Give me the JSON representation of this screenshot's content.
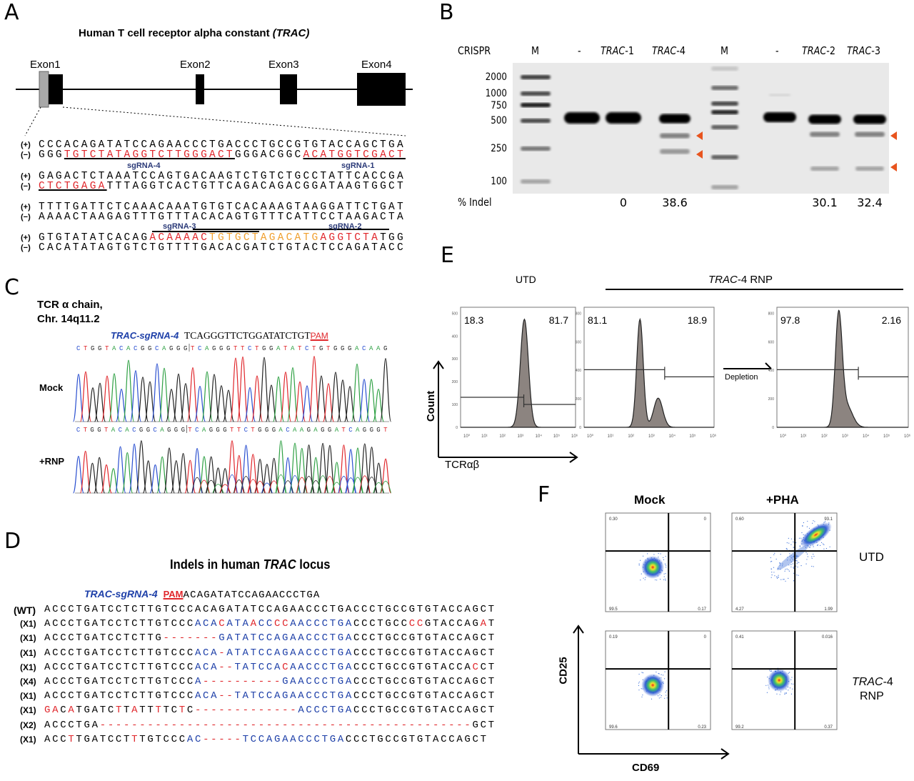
{
  "panels": {
    "a": "A",
    "b": "B",
    "c": "C",
    "d": "D",
    "e": "E",
    "f": "F"
  },
  "colors": {
    "red": "#e0262b",
    "blue": "#1d3fa8",
    "orange": "#f0a030",
    "navy": "#2b3a78",
    "arrow": "#e8541e",
    "hist_fill": "#8c8480"
  },
  "panel_a": {
    "title": "Human T cell receptor alpha constant",
    "title_italic": "(TRAC)",
    "exons": [
      "Exon1",
      "Exon2",
      "Exon3",
      "Exon4"
    ],
    "plus": "(+)",
    "minus": "(−)",
    "blocks": [
      {
        "plus": [
          {
            "t": "CCCACAGATATCCAGAACCCTGACCCTGCCGTGTACCAGCTGA"
          }
        ],
        "minus": [
          {
            "t": "GGG"
          },
          {
            "t": "TGTCTATAGGTCTTGGGACT",
            "c": "red",
            "u": true
          },
          {
            "t": "GGGACGGC"
          },
          {
            "t": "ACATGGTCGACT",
            "c": "red",
            "u": true
          }
        ]
      },
      {
        "plus": [
          {
            "t": "GAGACTCTAAATCCAGTGACAAGTCTGTCTGCCTATTCACCGA"
          }
        ],
        "minus": [
          {
            "t": "CTCTGAGA",
            "c": "red",
            "u": true
          },
          {
            "t": "TTTAGGTCACTGTTCAGACAGACGGATAAGTGGCT"
          }
        ]
      },
      {
        "plus": [
          {
            "t": "TTTTGATTCTCAAACAAATGTGTCACAAAGTAAGGATTCTGAT"
          }
        ],
        "minus": [
          {
            "t": "AAAACTAAGAGTTTGTTTACACAGTGTTTCATTCCTAAGACTA"
          }
        ]
      },
      {
        "plus": [
          {
            "t": "GTGTATATCACAG"
          },
          {
            "t": "ACAAAAC",
            "c": "red"
          },
          {
            "t": "TGTGCTAGACATG",
            "c": "orange"
          },
          {
            "t": "AGGTCTA",
            "c": "red"
          },
          {
            "t": "TGG"
          }
        ],
        "minus": [
          {
            "t": "CACATATAGTGTCTGTTTTGACACGATCTGTACTCCAGATACC"
          }
        ]
      }
    ],
    "sgrna": {
      "s4": "sgRNA-4",
      "s1": "sgRNA-1",
      "s3": "sgRNA-3",
      "s2": "sgRNA-2"
    }
  },
  "panel_b": {
    "crispr_label": "CRISPR",
    "lanes": [
      {
        "label": "M"
      },
      {
        "label": "-"
      },
      {
        "label": "TRAC",
        "suffix": "-1"
      },
      {
        "label": "TRAC",
        "suffix": "-4"
      },
      {
        "label": "M"
      },
      {
        "label": "-"
      },
      {
        "label": "TRAC",
        "suffix": "-2"
      },
      {
        "label": "TRAC",
        "suffix": "-3"
      }
    ],
    "size_markers": [
      "2000",
      "1000",
      "750",
      "500",
      "250",
      "100"
    ],
    "indel_label": "% Indel",
    "indel_values": [
      "",
      "",
      "0",
      "38.6",
      "",
      "",
      "30.1",
      "32.4"
    ]
  },
  "panel_c": {
    "title_line1": "TCR α chain,",
    "title_line2": "Chr. 14q11.2",
    "sgrna_label": "TRAC-sgRNA-4",
    "sgrna_seq": "TCAGGGTTCTGGATATCTGT",
    "pam": "PAM",
    "mock_calls": "CTGGTACACGGCAGGG|TCAGGGTTCTGGATATCTGTGGGACAAG",
    "rnp_calls": "CTGGTACACGGCAGGG|TCAGGGTTCTGGGACAAGAGGATCAGGGT",
    "mock_label": "Mock",
    "rnp_label": "+RNP",
    "base_colors": {
      "A": "#2ea043",
      "C": "#2a4fd0",
      "G": "#222222",
      "T": "#e0262b"
    }
  },
  "panel_d": {
    "title_pre": "Indels in human ",
    "title_it": "TRAC",
    "title_post": " locus",
    "sgrna_label": "TRAC-sgRNA-4",
    "pam": "PAM",
    "header_seq": "ACAGATATCCAGAACCCTGA",
    "rows": [
      {
        "tag": "(WT)",
        "segs": [
          {
            "t": "ACCCTGATCCTCTTGTCCCACAGATATCCAGAACCCTGACCCTGCCGTGTACCAGCT"
          }
        ]
      },
      {
        "tag": "(X1)",
        "segs": [
          {
            "t": "ACCCTGATCCTCTTGTCCC"
          },
          {
            "t": "ACA",
            "c": "blue"
          },
          {
            "t": "C",
            "c": "red"
          },
          {
            "t": "ATA",
            "c": "blue"
          },
          {
            "t": "A",
            "c": "red"
          },
          {
            "t": "CC",
            "c": "blue"
          },
          {
            "t": "CC",
            "c": "red"
          },
          {
            "t": "AACCCTGA",
            "c": "blue"
          },
          {
            "t": "CCCTGCC"
          },
          {
            "t": "CC",
            "c": "red"
          },
          {
            "t": "GTACCAG"
          },
          {
            "t": "A",
            "c": "red"
          },
          {
            "t": "T"
          }
        ]
      },
      {
        "tag": "(X1)",
        "segs": [
          {
            "t": "ACCCTGATCCTCTTG"
          },
          {
            "t": "-------",
            "c": "red"
          },
          {
            "t": "GATATCCAGAACCCTGA",
            "c": "blue"
          },
          {
            "t": "CCCTGCCGTGTACCAGCT"
          }
        ]
      },
      {
        "tag": "(X1)",
        "segs": [
          {
            "t": "ACCCTGATCCTCTTGTCCC"
          },
          {
            "t": "ACA",
            "c": "blue"
          },
          {
            "t": "-",
            "c": "red"
          },
          {
            "t": "ATATCCAGAACCCTGA",
            "c": "blue"
          },
          {
            "t": "CCCTGCCGTGTACCAGCT"
          }
        ]
      },
      {
        "tag": "(X1)",
        "segs": [
          {
            "t": "ACCCTGATCCTCTTGTCCC"
          },
          {
            "t": "ACA",
            "c": "blue"
          },
          {
            "t": "--",
            "c": "red"
          },
          {
            "t": "TATCCA",
            "c": "blue"
          },
          {
            "t": "C",
            "c": "red"
          },
          {
            "t": "AACCCTGA",
            "c": "blue"
          },
          {
            "t": "CCCTGCCGTGTACCA"
          },
          {
            "t": "C",
            "c": "red"
          },
          {
            "t": "CT"
          }
        ]
      },
      {
        "tag": "(X4)",
        "segs": [
          {
            "t": "ACCCTGATCCTCTTGTCCC"
          },
          {
            "t": "A",
            "c": "blue"
          },
          {
            "t": "----------",
            "c": "red"
          },
          {
            "t": "GAACCCTGA",
            "c": "blue"
          },
          {
            "t": "CCCTGCCGTGTACCAGCT"
          }
        ]
      },
      {
        "tag": "(X1)",
        "segs": [
          {
            "t": "ACCCTGATCCTCTTGTCCC"
          },
          {
            "t": "ACA",
            "c": "blue"
          },
          {
            "t": "--",
            "c": "red"
          },
          {
            "t": "TATCCAGAACCCTGA",
            "c": "blue"
          },
          {
            "t": "CCCTGCCGTGTACCAGCT"
          }
        ]
      },
      {
        "tag": "(X1)",
        "segs": [
          {
            "t": "GA",
            "c": "red"
          },
          {
            "t": "C"
          },
          {
            "t": "A",
            "c": "red"
          },
          {
            "t": "TGATC"
          },
          {
            "t": "T",
            "c": "red"
          },
          {
            "t": "T"
          },
          {
            "t": "A",
            "c": "red"
          },
          {
            "t": "TT"
          },
          {
            "t": "T",
            "c": "red"
          },
          {
            "t": "TC"
          },
          {
            "t": "T",
            "c": "red"
          },
          {
            "t": "C"
          },
          {
            "t": "-------------",
            "c": "red"
          },
          {
            "t": "ACCCTGA",
            "c": "blue"
          },
          {
            "t": "CCCTGCCGTGTACCAGCT"
          }
        ]
      },
      {
        "tag": "(X2)",
        "segs": [
          {
            "t": "ACCCTGA"
          },
          {
            "t": "-----------------------------------------------",
            "c": "red"
          },
          {
            "t": "GCT"
          }
        ]
      },
      {
        "tag": "(X1)",
        "segs": [
          {
            "t": "ACC"
          },
          {
            "t": "T",
            "c": "red"
          },
          {
            "t": "TGATCCT"
          },
          {
            "t": "T",
            "c": "red"
          },
          {
            "t": "TGTCCC"
          },
          {
            "t": "AC",
            "c": "blue"
          },
          {
            "t": "-----",
            "c": "red"
          },
          {
            "t": "TCCAGAACCCTGA",
            "c": "blue"
          },
          {
            "t": "CCCTGCCGTGTACCAGCT"
          }
        ]
      }
    ]
  },
  "panel_e": {
    "utd_label": "UTD",
    "rnp_label_it": "TRAC",
    "rnp_label": "-4 RNP",
    "ylabel": "Count",
    "xlabel": "TCRαβ",
    "depletion": "Depletion",
    "xticks": [
      "10⁰",
      "10¹",
      "10²",
      "10³",
      "10⁴",
      "10⁵",
      "10⁶"
    ],
    "plots": [
      {
        "left": "18.3",
        "right": "81.7",
        "yticks": [
          "0",
          "100",
          "200",
          "300",
          "400",
          "500"
        ]
      },
      {
        "left": "81.1",
        "right": "18.9",
        "yticks": [
          "0",
          "200",
          "400",
          "600",
          "800"
        ]
      },
      {
        "left": "97.8",
        "right": "2.16",
        "yticks": [
          "0",
          "200",
          "400",
          "600",
          "800"
        ]
      }
    ]
  },
  "panel_f": {
    "col_labels": [
      "Mock",
      "+PHA"
    ],
    "row_label_utd": "UTD",
    "row_label_rnp_it": "TRAC",
    "row_label_rnp_suffix": "-4",
    "row_label_rnp_2": "RNP",
    "ylabel": "CD25",
    "xlabel": "CD69",
    "plots": [
      {
        "ul": "0.30",
        "ur": "0",
        "ll": "99.5",
        "lr": "0.17"
      },
      {
        "ul": "0.60",
        "ur": "93.1",
        "ll": "4.27",
        "lr": "1.99"
      },
      {
        "ul": "0.19",
        "ur": "0",
        "ll": "99.6",
        "lr": "0.23"
      },
      {
        "ul": "0.41",
        "ur": "0.016",
        "ll": "99.2",
        "lr": "0.37"
      }
    ]
  }
}
